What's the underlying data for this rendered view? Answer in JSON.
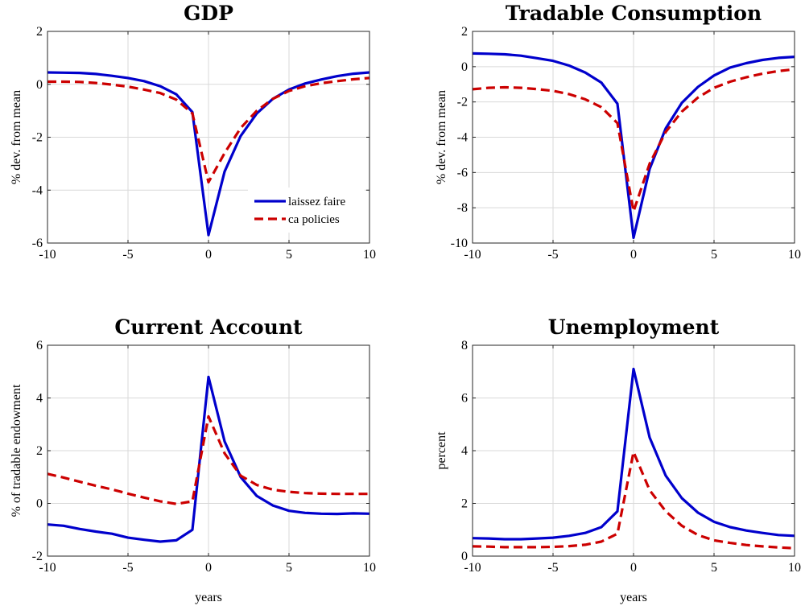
{
  "chart_data": [
    {
      "type": "line",
      "title": "GDP",
      "xlabel": "",
      "ylabel": "% dev. from mean",
      "xlim": [
        -10,
        10
      ],
      "ylim": [
        -6,
        2
      ],
      "xticks": [
        -10,
        -5,
        0,
        5,
        10
      ],
      "yticks": [
        -6,
        -4,
        -2,
        0,
        2
      ],
      "grid": true,
      "legend": "bottom-right",
      "x": [
        -10,
        -9,
        -8,
        -7,
        -6,
        -5,
        -4,
        -3,
        -2,
        -1,
        0,
        1,
        2,
        3,
        4,
        5,
        6,
        7,
        8,
        9,
        10
      ],
      "series": [
        {
          "name": "laissez faire",
          "color": "#0000cc",
          "style": "solid",
          "values": [
            0.45,
            0.44,
            0.43,
            0.39,
            0.32,
            0.24,
            0.12,
            -0.07,
            -0.38,
            -1.05,
            -5.7,
            -3.3,
            -1.95,
            -1.1,
            -0.55,
            -0.2,
            0.03,
            0.18,
            0.31,
            0.4,
            0.45
          ]
        },
        {
          "name": "ca policies",
          "color": "#cc0000",
          "style": "dashed",
          "values": [
            0.1,
            0.1,
            0.09,
            0.05,
            -0.01,
            -0.09,
            -0.2,
            -0.33,
            -0.58,
            -1.1,
            -3.7,
            -2.6,
            -1.65,
            -1.0,
            -0.55,
            -0.25,
            -0.07,
            0.04,
            0.12,
            0.19,
            0.24
          ]
        }
      ]
    },
    {
      "type": "line",
      "title": "Tradable Consumption",
      "xlabel": "",
      "ylabel": "% dev. from mean",
      "xlim": [
        -10,
        10
      ],
      "ylim": [
        -10,
        2
      ],
      "xticks": [
        -10,
        -5,
        0,
        5,
        10
      ],
      "yticks": [
        -10,
        -8,
        -6,
        -4,
        -2,
        0,
        2
      ],
      "grid": true,
      "x": [
        -10,
        -9,
        -8,
        -7,
        -6,
        -5,
        -4,
        -3,
        -2,
        -1,
        0,
        1,
        2,
        3,
        4,
        5,
        6,
        7,
        8,
        9,
        10
      ],
      "series": [
        {
          "name": "laissez faire",
          "color": "#0000cc",
          "style": "solid",
          "values": [
            0.75,
            0.73,
            0.7,
            0.62,
            0.48,
            0.33,
            0.06,
            -0.33,
            -0.9,
            -2.1,
            -9.7,
            -5.8,
            -3.5,
            -2.05,
            -1.15,
            -0.5,
            -0.05,
            0.2,
            0.38,
            0.5,
            0.56
          ]
        },
        {
          "name": "ca policies",
          "color": "#cc0000",
          "style": "dashed",
          "values": [
            -1.28,
            -1.2,
            -1.17,
            -1.2,
            -1.27,
            -1.37,
            -1.56,
            -1.85,
            -2.3,
            -3.2,
            -8.2,
            -5.5,
            -3.7,
            -2.55,
            -1.75,
            -1.2,
            -0.85,
            -0.6,
            -0.4,
            -0.25,
            -0.15
          ]
        }
      ]
    },
    {
      "type": "line",
      "title": "Current Account",
      "xlabel": "years",
      "ylabel": "% of tradable endowment",
      "xlim": [
        -10,
        10
      ],
      "ylim": [
        -2,
        6
      ],
      "xticks": [
        -10,
        -5,
        0,
        5,
        10
      ],
      "yticks": [
        -2,
        0,
        2,
        4,
        6
      ],
      "grid": true,
      "x": [
        -10,
        -9,
        -8,
        -7,
        -6,
        -5,
        -4,
        -3,
        -2,
        -1,
        0,
        1,
        2,
        3,
        4,
        5,
        6,
        7,
        8,
        9,
        10
      ],
      "series": [
        {
          "name": "laissez faire",
          "color": "#0000cc",
          "style": "solid",
          "values": [
            -0.8,
            -0.85,
            -0.97,
            -1.07,
            -1.15,
            -1.3,
            -1.38,
            -1.45,
            -1.4,
            -1.0,
            4.8,
            2.35,
            1.0,
            0.28,
            -0.08,
            -0.28,
            -0.36,
            -0.39,
            -0.4,
            -0.38,
            -0.39
          ]
        },
        {
          "name": "ca policies",
          "color": "#cc0000",
          "style": "dashed",
          "values": [
            1.12,
            0.98,
            0.82,
            0.67,
            0.53,
            0.37,
            0.22,
            0.08,
            -0.02,
            0.08,
            3.3,
            1.9,
            1.05,
            0.7,
            0.52,
            0.44,
            0.39,
            0.37,
            0.36,
            0.36,
            0.36
          ]
        }
      ]
    },
    {
      "type": "line",
      "title": "Unemployment",
      "xlabel": "years",
      "ylabel": "percent",
      "xlim": [
        -10,
        10
      ],
      "ylim": [
        0,
        8
      ],
      "xticks": [
        -10,
        -5,
        0,
        5,
        10
      ],
      "yticks": [
        0,
        2,
        4,
        6,
        8
      ],
      "grid": true,
      "x": [
        -10,
        -9,
        -8,
        -7,
        -6,
        -5,
        -4,
        -3,
        -2,
        -1,
        0,
        1,
        2,
        3,
        4,
        5,
        6,
        7,
        8,
        9,
        10
      ],
      "series": [
        {
          "name": "laissez faire",
          "color": "#0000cc",
          "style": "solid",
          "values": [
            0.68,
            0.67,
            0.64,
            0.64,
            0.67,
            0.7,
            0.77,
            0.88,
            1.1,
            1.7,
            7.1,
            4.5,
            3.05,
            2.2,
            1.65,
            1.3,
            1.1,
            0.97,
            0.88,
            0.8,
            0.77
          ]
        },
        {
          "name": "ca policies",
          "color": "#cc0000",
          "style": "dashed",
          "values": [
            0.37,
            0.36,
            0.34,
            0.34,
            0.34,
            0.35,
            0.38,
            0.43,
            0.55,
            0.85,
            3.95,
            2.5,
            1.7,
            1.15,
            0.8,
            0.6,
            0.5,
            0.42,
            0.37,
            0.33,
            0.3
          ]
        }
      ]
    }
  ]
}
